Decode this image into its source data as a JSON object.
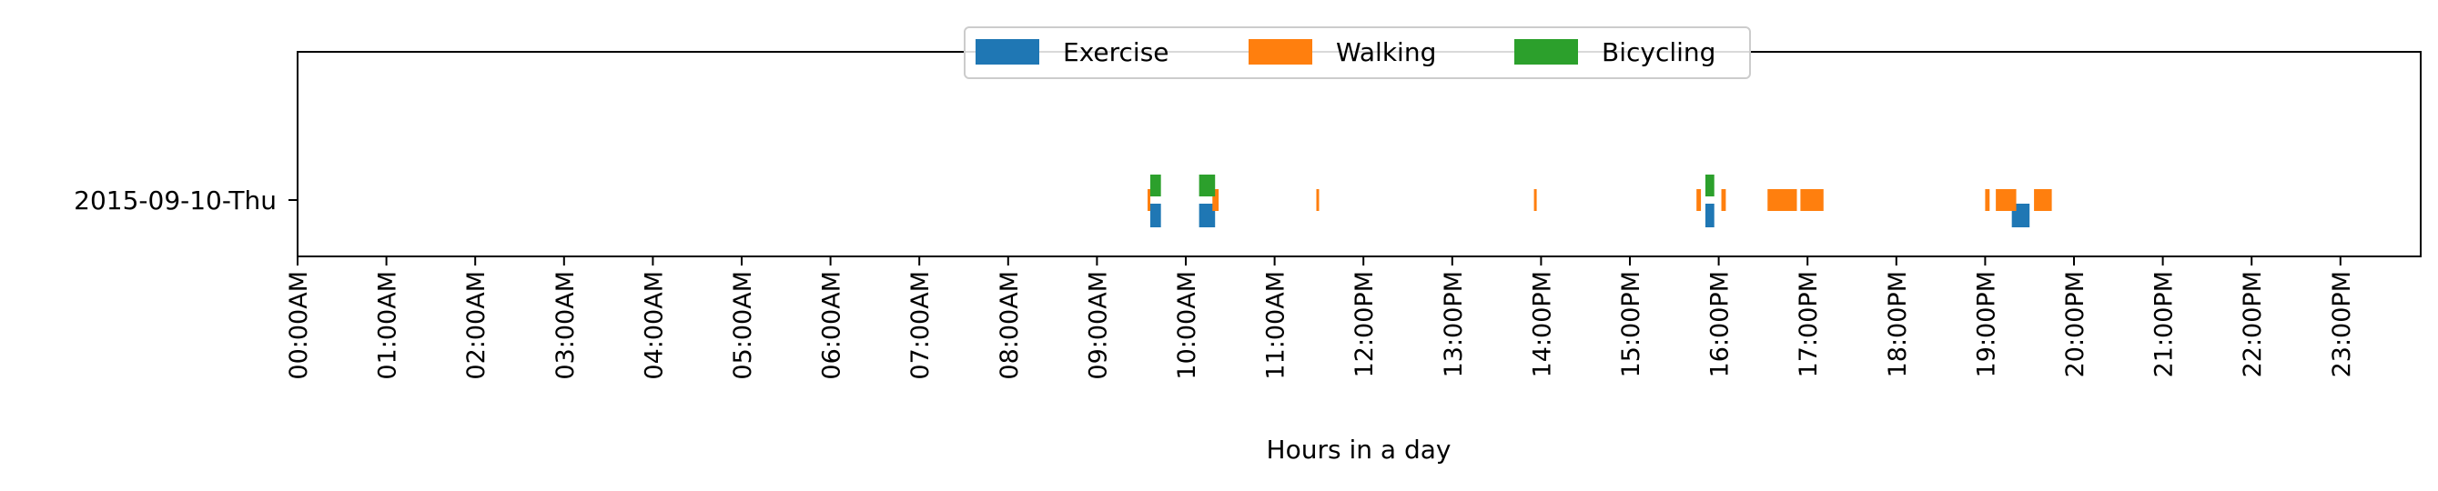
{
  "chart_data": {
    "type": "timeline",
    "xlabel": "Hours in a day",
    "xlim": [
      0,
      24
    ],
    "row_label": "2015-09-10-Thu",
    "x_ticks": [
      {
        "value": 0,
        "label": "00:00AM"
      },
      {
        "value": 1,
        "label": "01:00AM"
      },
      {
        "value": 2,
        "label": "02:00AM"
      },
      {
        "value": 3,
        "label": "03:00AM"
      },
      {
        "value": 4,
        "label": "04:00AM"
      },
      {
        "value": 5,
        "label": "05:00AM"
      },
      {
        "value": 6,
        "label": "06:00AM"
      },
      {
        "value": 7,
        "label": "07:00AM"
      },
      {
        "value": 8,
        "label": "08:00AM"
      },
      {
        "value": 9,
        "label": "09:00AM"
      },
      {
        "value": 10,
        "label": "10:00AM"
      },
      {
        "value": 11,
        "label": "11:00AM"
      },
      {
        "value": 12,
        "label": "12:00PM"
      },
      {
        "value": 13,
        "label": "13:00PM"
      },
      {
        "value": 14,
        "label": "14:00PM"
      },
      {
        "value": 15,
        "label": "15:00PM"
      },
      {
        "value": 16,
        "label": "16:00PM"
      },
      {
        "value": 17,
        "label": "17:00PM"
      },
      {
        "value": 18,
        "label": "18:00PM"
      },
      {
        "value": 19,
        "label": "19:00PM"
      },
      {
        "value": 20,
        "label": "20:00PM"
      },
      {
        "value": 21,
        "label": "21:00PM"
      },
      {
        "value": 22,
        "label": "22:00PM"
      },
      {
        "value": 23,
        "label": "23:00PM"
      }
    ],
    "legend_position": "top-center",
    "series": [
      {
        "name": "Exercise",
        "color": "#1f77b4",
        "lane": "lower",
        "intervals": [
          [
            9.6,
            9.72
          ],
          [
            10.15,
            10.33
          ],
          [
            15.85,
            15.95
          ],
          [
            19.3,
            19.5
          ]
        ]
      },
      {
        "name": "Walking",
        "color": "#ff7f0e",
        "lane": "middle",
        "intervals": [
          [
            9.57,
            9.6
          ],
          [
            10.3,
            10.37
          ],
          [
            11.47,
            11.5
          ],
          [
            13.92,
            13.95
          ],
          [
            15.75,
            15.8
          ],
          [
            16.03,
            16.08
          ],
          [
            16.55,
            16.88
          ],
          [
            16.92,
            17.18
          ],
          [
            19.0,
            19.05
          ],
          [
            19.12,
            19.35
          ],
          [
            19.55,
            19.75
          ]
        ]
      },
      {
        "name": "Bicycling",
        "color": "#2ca02c",
        "lane": "upper",
        "intervals": [
          [
            9.6,
            9.72
          ],
          [
            10.15,
            10.33
          ],
          [
            15.85,
            15.95
          ]
        ]
      }
    ]
  }
}
